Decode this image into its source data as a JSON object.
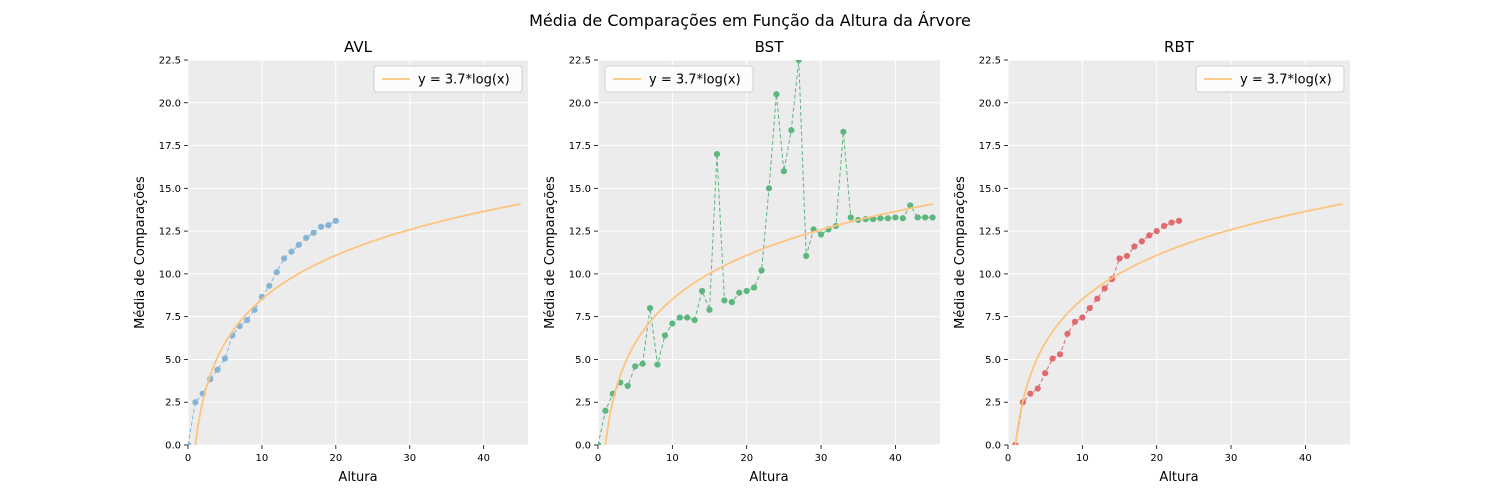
{
  "figure": {
    "suptitle": "Média de Comparações em Função da Altura da Árvore"
  },
  "colors": {
    "background": "#ececec",
    "grid": "#ffffff",
    "fit_line": "#fdc47f",
    "avl": "#86b4d4",
    "bst": "#5cb77f",
    "rbt": "#e06a6d"
  },
  "chart_data": [
    {
      "type": "line",
      "title": "AVL",
      "xlabel": "Altura",
      "ylabel": "Média de Comparações",
      "xlim": [
        0,
        46
      ],
      "ylim": [
        0,
        22.5
      ],
      "xticks": [
        0,
        10,
        20,
        30,
        40
      ],
      "xtick_labels": [
        "0",
        "10",
        "20",
        "30",
        "40"
      ],
      "yticks": [
        0,
        2.5,
        5,
        7.5,
        10,
        12.5,
        15,
        17.5,
        20,
        22.5
      ],
      "ytick_labels": [
        "0.0",
        "2.5",
        "5.0",
        "7.5",
        "10.0",
        "12.5",
        "15.0",
        "17.5",
        "20.0",
        "22.5"
      ],
      "grid": true,
      "legend_position": "top-right",
      "series": [
        {
          "name": "",
          "style": "dashed-markers",
          "color_key": "avl",
          "x": [
            0,
            1,
            2,
            3,
            4,
            5,
            6,
            7,
            8,
            9,
            10,
            11,
            12,
            13,
            14,
            15,
            16,
            17,
            18,
            19,
            20
          ],
          "y": [
            0.0,
            2.5,
            3.0,
            3.85,
            4.4,
            5.05,
            6.4,
            6.95,
            7.3,
            7.9,
            8.65,
            9.3,
            10.1,
            10.9,
            11.3,
            11.7,
            12.1,
            12.4,
            12.75,
            12.85,
            13.1
          ]
        },
        {
          "name": "y = 3.7*log(x)",
          "style": "fit",
          "color_key": "fit_line",
          "coef": 3.7,
          "x_range": [
            1,
            45
          ]
        }
      ]
    },
    {
      "type": "line",
      "title": "BST",
      "xlabel": "Altura",
      "ylabel": "Média de Comparações",
      "xlim": [
        0,
        46
      ],
      "ylim": [
        0,
        22.5
      ],
      "xticks": [
        0,
        10,
        20,
        30,
        40
      ],
      "xtick_labels": [
        "0",
        "10",
        "20",
        "30",
        "40"
      ],
      "yticks": [
        0,
        2.5,
        5,
        7.5,
        10,
        12.5,
        15,
        17.5,
        20,
        22.5
      ],
      "ytick_labels": [
        "0.0",
        "2.5",
        "5.0",
        "7.5",
        "10.0",
        "12.5",
        "15.0",
        "17.5",
        "20.0",
        "22.5"
      ],
      "grid": true,
      "legend_position": "top-left",
      "series": [
        {
          "name": "",
          "style": "dashed-markers",
          "color_key": "bst",
          "x": [
            0,
            1,
            2,
            3,
            4,
            5,
            6,
            7,
            8,
            9,
            10,
            11,
            12,
            13,
            14,
            15,
            16,
            17,
            18,
            19,
            20,
            21,
            22,
            23,
            24,
            25,
            26,
            27,
            28,
            29,
            30,
            31,
            32,
            33,
            34,
            35,
            36,
            37,
            38,
            39,
            40,
            41,
            42,
            43,
            44,
            45
          ],
          "y": [
            0.0,
            2.0,
            3.0,
            3.65,
            3.45,
            4.6,
            4.75,
            8.0,
            4.7,
            6.4,
            7.1,
            7.45,
            7.45,
            7.3,
            9.0,
            7.9,
            17.0,
            8.45,
            8.35,
            8.9,
            9.0,
            9.2,
            10.2,
            15.0,
            20.5,
            16.0,
            18.4,
            22.5,
            11.05,
            12.6,
            12.3,
            12.6,
            12.8,
            18.3,
            13.3,
            13.15,
            13.2,
            13.2,
            13.25,
            13.25,
            13.3,
            13.25,
            14.0,
            13.3,
            13.3,
            13.3
          ]
        },
        {
          "name": "y = 3.7*log(x)",
          "style": "fit",
          "color_key": "fit_line",
          "coef": 3.7,
          "x_range": [
            1,
            45
          ]
        }
      ]
    },
    {
      "type": "line",
      "title": "RBT",
      "xlabel": "Altura",
      "ylabel": "Média de Comparações",
      "xlim": [
        0,
        46
      ],
      "ylim": [
        0,
        22.5
      ],
      "xticks": [
        0,
        10,
        20,
        30,
        40
      ],
      "xtick_labels": [
        "0",
        "10",
        "20",
        "30",
        "40"
      ],
      "yticks": [
        0,
        2.5,
        5,
        7.5,
        10,
        12.5,
        15,
        17.5,
        20,
        22.5
      ],
      "ytick_labels": [
        "0.0",
        "2.5",
        "5.0",
        "7.5",
        "10.0",
        "12.5",
        "15.0",
        "17.5",
        "20.0",
        "22.5"
      ],
      "grid": true,
      "legend_position": "top-right",
      "series": [
        {
          "name": "",
          "style": "dashed-markers",
          "color_key": "rbt",
          "x": [
            1,
            2,
            3,
            4,
            5,
            6,
            7,
            8,
            9,
            10,
            11,
            12,
            13,
            14,
            15,
            16,
            17,
            18,
            19,
            20,
            21,
            22,
            23
          ],
          "y": [
            0.0,
            2.5,
            3.0,
            3.3,
            4.2,
            5.05,
            5.3,
            6.5,
            7.2,
            7.45,
            8.0,
            8.55,
            9.15,
            9.7,
            10.9,
            11.05,
            11.6,
            11.9,
            12.25,
            12.5,
            12.8,
            13.0,
            13.1
          ]
        },
        {
          "name": "y = 3.7*log(x)",
          "style": "fit",
          "color_key": "fit_line",
          "coef": 3.7,
          "x_range": [
            1,
            45
          ]
        }
      ]
    }
  ]
}
